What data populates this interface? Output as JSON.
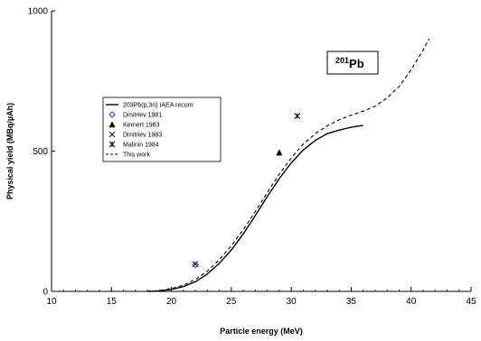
{
  "chart_data": {
    "type": "line",
    "title": "",
    "xlabel": "Particle energy (MeV)",
    "ylabel": "Physical yield (MBq/µAh)",
    "xlim": [
      10,
      45
    ],
    "ylim": [
      0,
      1000
    ],
    "x_ticks": [
      10,
      15,
      20,
      25,
      30,
      35,
      40,
      45
    ],
    "y_ticks": [
      0,
      500,
      1000
    ],
    "x_tick_labels": [
      "10",
      "15",
      "20",
      "25",
      "30",
      "35",
      "40",
      "45"
    ],
    "y_tick_labels": [
      "0",
      "500",
      "1000"
    ],
    "grid": false,
    "legend_position": "middle-left",
    "annotation": {
      "mass_number": "201",
      "element": "Pb"
    },
    "series": [
      {
        "name": "203Pb(p,3n) IAEA recom",
        "style": "solid-line",
        "color": "#000000",
        "x": [
          18,
          19,
          20,
          21,
          22,
          23,
          24,
          25,
          26,
          27,
          28,
          29,
          30,
          31,
          32,
          33,
          34,
          35,
          36
        ],
        "y": [
          0,
          2,
          7,
          17,
          34,
          62,
          100,
          148,
          205,
          270,
          338,
          402,
          458,
          504,
          538,
          562,
          575,
          585,
          592
        ]
      },
      {
        "name": "Dmitriev 1981",
        "style": "marker",
        "marker": "open-diamond",
        "color": "#1f3fbf",
        "x": [
          22
        ],
        "y": [
          95
        ]
      },
      {
        "name": "Kernert 1983",
        "style": "marker",
        "marker": "filled-triangle",
        "color": "#000000",
        "x": [
          29
        ],
        "y": [
          495
        ]
      },
      {
        "name": "Dmitriev 1983",
        "style": "marker",
        "marker": "x",
        "color": "#000000",
        "x": [
          22
        ],
        "y": [
          97
        ]
      },
      {
        "name": "Malinin 1984",
        "style": "marker",
        "marker": "asterisk",
        "color": "#000000",
        "x": [
          30.5
        ],
        "y": [
          625
        ]
      },
      {
        "name": "This work",
        "style": "dashed-line",
        "color": "#000000",
        "x": [
          18,
          19,
          20,
          21,
          22,
          23,
          24,
          25,
          26,
          27,
          28,
          29,
          30,
          31,
          32,
          33,
          34,
          35,
          36,
          37,
          38,
          39,
          40,
          41,
          41.5
        ],
        "y": [
          0,
          3,
          10,
          22,
          42,
          72,
          113,
          163,
          220,
          285,
          352,
          418,
          475,
          525,
          562,
          590,
          612,
          628,
          642,
          660,
          690,
          730,
          790,
          860,
          900
        ]
      }
    ]
  }
}
